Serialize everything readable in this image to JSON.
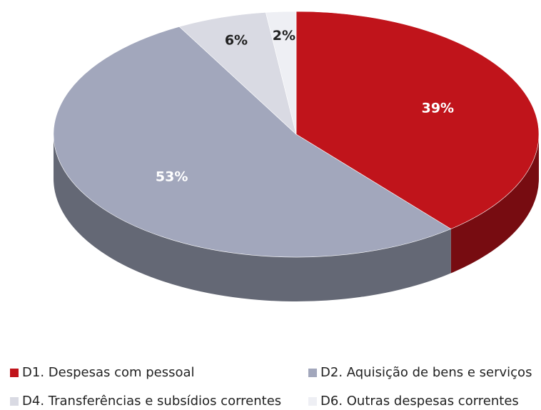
{
  "chart_data": {
    "type": "pie3d",
    "categories": [
      "D1. Despesas com pessoal",
      "D2. Aquisição de bens e serviços",
      "D4. Transferências e subsídios correntes",
      "D6. Outras despesas correntes"
    ],
    "values": [
      39,
      53,
      6,
      2
    ],
    "value_labels": [
      "39%",
      "53%",
      "6%",
      "2%"
    ],
    "colors": [
      "#c0141b",
      "#a2a7bc",
      "#d9dae3",
      "#eeeff4"
    ]
  }
}
